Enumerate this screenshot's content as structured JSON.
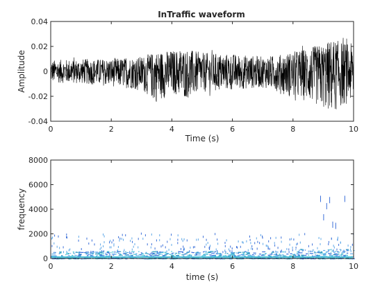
{
  "chart_data": [
    {
      "type": "line",
      "title": "InTraffic waveform",
      "xlabel": "Time (s)",
      "ylabel": "Amplitude",
      "xlim": [
        0,
        10
      ],
      "ylim": [
        -0.04,
        0.04
      ],
      "xticks": [
        "0",
        "2",
        "4",
        "6",
        "8",
        "10"
      ],
      "yticks": [
        "0.04",
        "0.02",
        "0",
        "-0.02",
        "-0.04"
      ],
      "grid": false,
      "line_color": "#000000",
      "envelope": {
        "t": [
          0,
          1,
          2,
          3,
          3.5,
          4,
          4.5,
          5,
          6,
          7,
          7.5,
          8,
          8.5,
          9,
          9.3,
          9.6,
          10
        ],
        "upper": [
          0.009,
          0.01,
          0.01,
          0.012,
          0.016,
          0.017,
          0.018,
          0.015,
          0.014,
          0.012,
          0.013,
          0.016,
          0.019,
          0.022,
          0.026,
          0.024,
          0.022
        ],
        "lower": [
          -0.009,
          -0.01,
          -0.012,
          -0.015,
          -0.025,
          -0.018,
          -0.022,
          -0.017,
          -0.015,
          -0.013,
          -0.016,
          -0.022,
          -0.024,
          -0.03,
          -0.034,
          -0.028,
          -0.024
        ]
      }
    },
    {
      "type": "scatter",
      "title": "",
      "xlabel": "time (s)",
      "ylabel": "frequency",
      "xlim": [
        0,
        10
      ],
      "ylim": [
        0,
        8000
      ],
      "xticks": [
        "0",
        "2",
        "4",
        "6",
        "8",
        "10"
      ],
      "yticks": [
        "8000",
        "6000",
        "4000",
        "2000",
        "0"
      ],
      "grid": false,
      "colors": [
        "#3b6fd9",
        "#5fa8e8",
        "#4cc3d9",
        "#2a9bc0"
      ],
      "dense_band": {
        "x": [
          0,
          10
        ],
        "y": [
          0,
          600
        ]
      },
      "high_points": [
        {
          "x": 8.9,
          "y": 5100
        },
        {
          "x": 9.2,
          "y": 5000
        },
        {
          "x": 9.7,
          "y": 5100
        },
        {
          "x": 9.1,
          "y": 4500
        },
        {
          "x": 9.0,
          "y": 3600
        },
        {
          "x": 9.4,
          "y": 2900
        },
        {
          "x": 9.3,
          "y": 3000
        }
      ]
    }
  ]
}
